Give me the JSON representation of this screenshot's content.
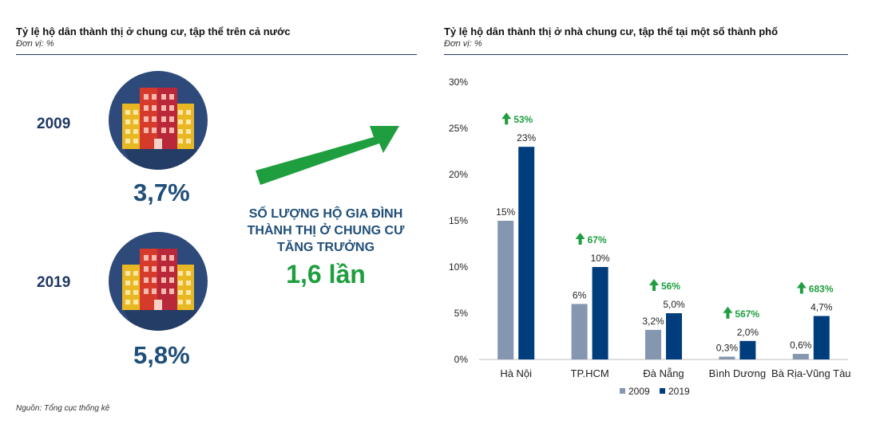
{
  "left": {
    "title": "Tỷ lệ hộ dân thành thị ở chung cư, tập thể trên cả nước",
    "unit": "Đơn vị: %",
    "rows": [
      {
        "year": "2009",
        "value": "3,7%"
      },
      {
        "year": "2019",
        "value": "5,8%"
      }
    ],
    "growth_text": [
      "SỐ LƯỢNG HỘ GIA ĐÌNH",
      "THÀNH THỊ Ở CHUNG CƯ",
      "TĂNG TRƯỞNG"
    ],
    "growth_value": "1,6 lần",
    "icon": "apartment-building-icon",
    "arrow_icon": "green-arrow-up-right-icon"
  },
  "right": {
    "title": "Tỷ lệ hộ dân thành thị ở nhà chung cư, tập thể tại một số thành phố",
    "unit": "Đơn vị: %"
  },
  "source": "Nguồn: Tổng cục thống kê",
  "colors": {
    "navy": "#1f4e79",
    "series_2009": "#8496b0",
    "series_2019": "#003d7c",
    "growth_green": "#1e9e3e"
  },
  "chart_data": {
    "type": "bar",
    "categories": [
      "Hà Nội",
      "TP.HCM",
      "Đà Nẵng",
      "Bình Dương",
      "Bà Rịa-Vũng Tàu"
    ],
    "series": [
      {
        "name": "2009",
        "values": [
          15,
          6,
          3.2,
          0.3,
          0.6
        ],
        "labels": [
          "15%",
          "6%",
          "3,2%",
          "0,3%",
          "0,6%"
        ]
      },
      {
        "name": "2019",
        "values": [
          23,
          10,
          5.0,
          2.0,
          4.7
        ],
        "labels": [
          "23%",
          "10%",
          "5,0%",
          "2,0%",
          "4,7%"
        ]
      }
    ],
    "growth_labels": [
      "53%",
      "67%",
      "56%",
      "567%",
      "683%"
    ],
    "ylim": [
      0,
      30
    ],
    "yticks": [
      0,
      5,
      10,
      15,
      20,
      25,
      30
    ],
    "ytick_labels": [
      "0%",
      "5%",
      "10%",
      "15%",
      "20%",
      "25%",
      "30%"
    ],
    "legend": "bottom",
    "grid": false
  }
}
